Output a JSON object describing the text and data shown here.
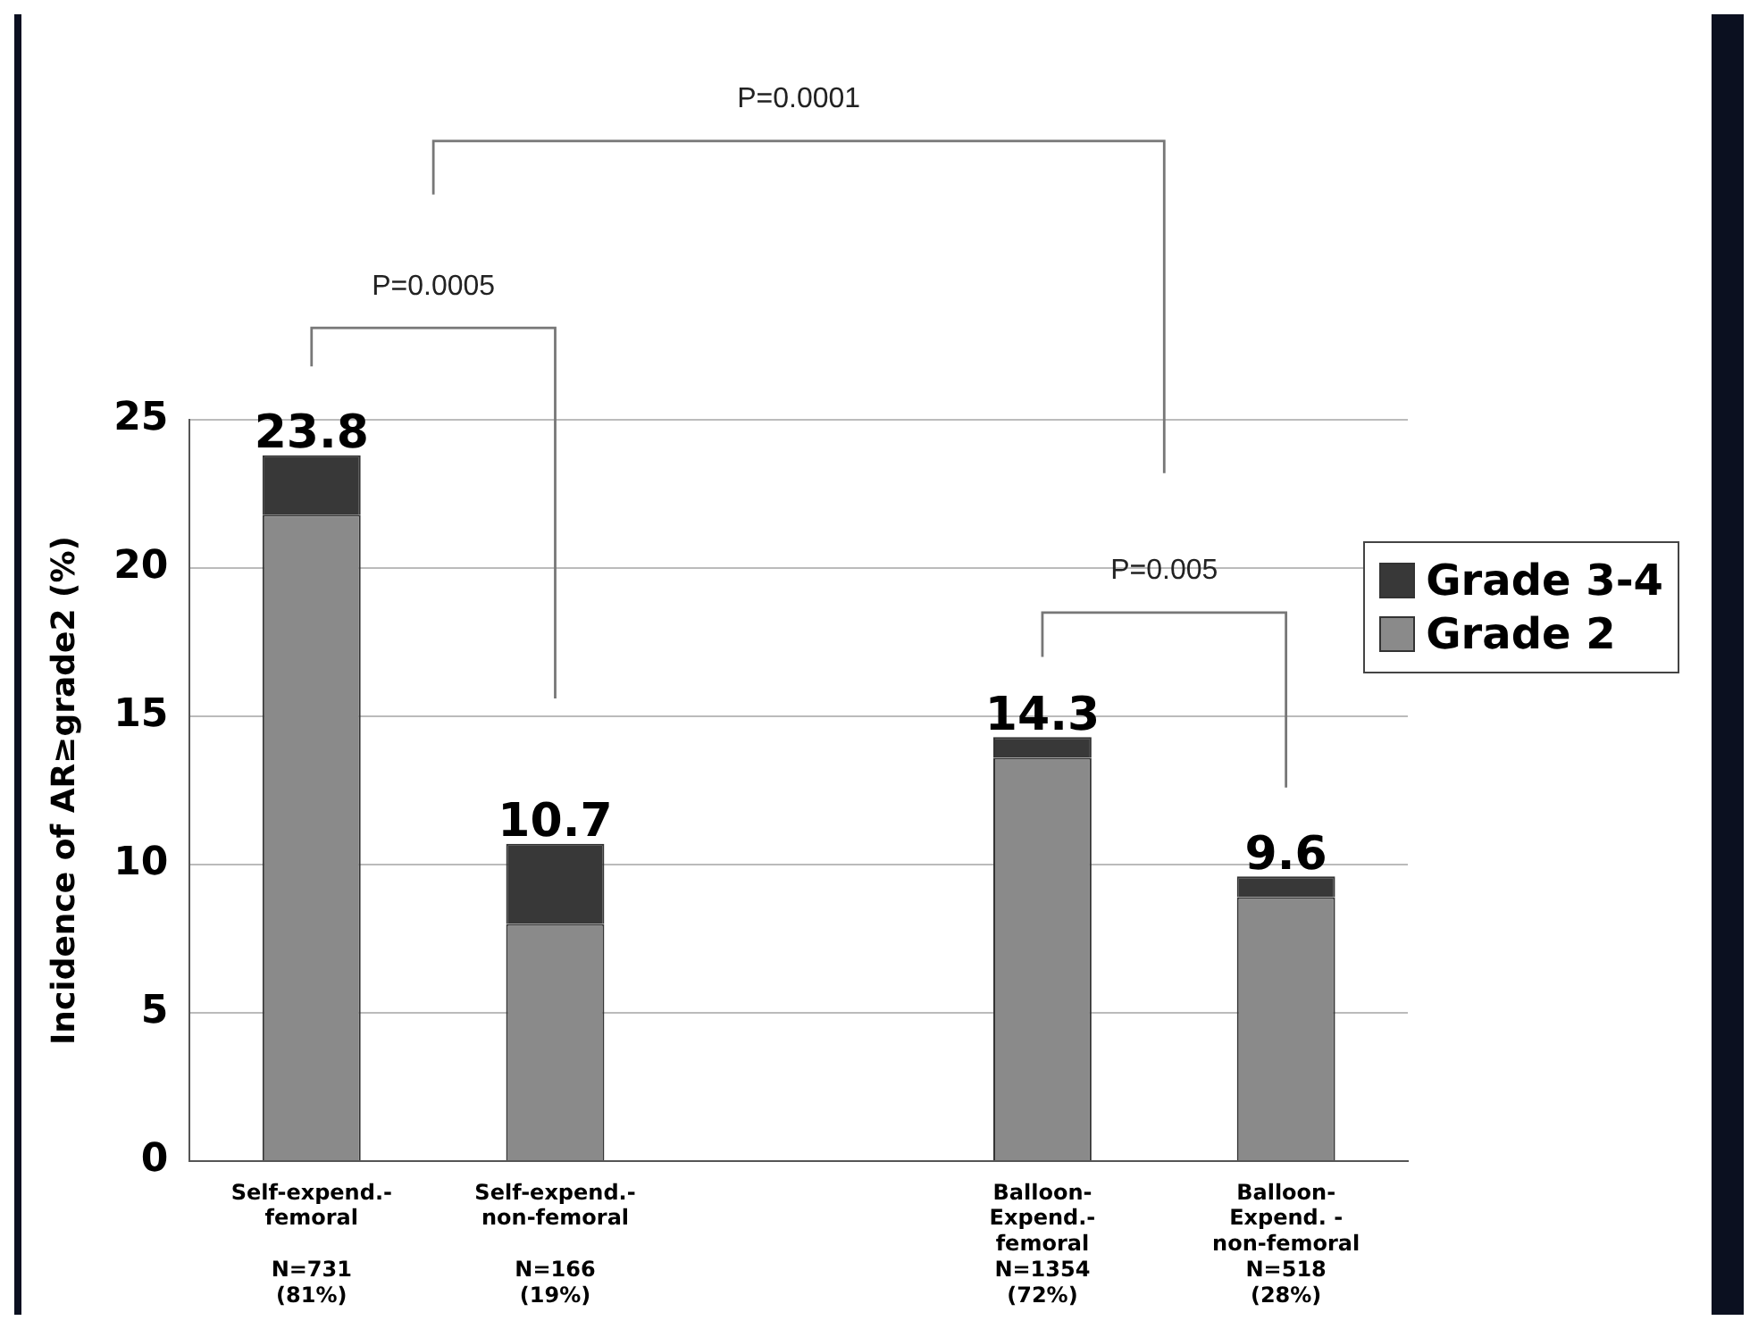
{
  "chart_data": {
    "type": "bar",
    "stacked": true,
    "ylabel": "Incidence of AR≥grade2 (%)",
    "categories": [
      "Self-expend.-\nfemoral\n\nN=731\n(81%)",
      "Self-expend.-\nnon-femoral\n\nN=166\n(19%)",
      null,
      "Balloon-\nExpend.-\nfemoral\nN=1354\n(72%)",
      "Balloon-\nExpend. -\nnon-femoral\nN=518\n(28%)"
    ],
    "series": [
      {
        "name": "Grade 2",
        "color": "#8a8a8a",
        "values": [
          21.8,
          8.0,
          null,
          13.6,
          8.9
        ]
      },
      {
        "name": "Grade 3-4",
        "color": "#383838",
        "values": [
          2.0,
          2.7,
          null,
          0.7,
          0.7
        ]
      }
    ],
    "totals": [
      "23.8",
      "10.7",
      null,
      "14.3",
      "9.6"
    ],
    "ylim": [
      0,
      25
    ],
    "yticks": [
      0,
      5,
      10,
      15,
      20,
      25
    ],
    "grid": "y",
    "legend": "right",
    "annotations": [
      "P=0.0001",
      "P=0.0005",
      "P=0.005"
    ]
  }
}
